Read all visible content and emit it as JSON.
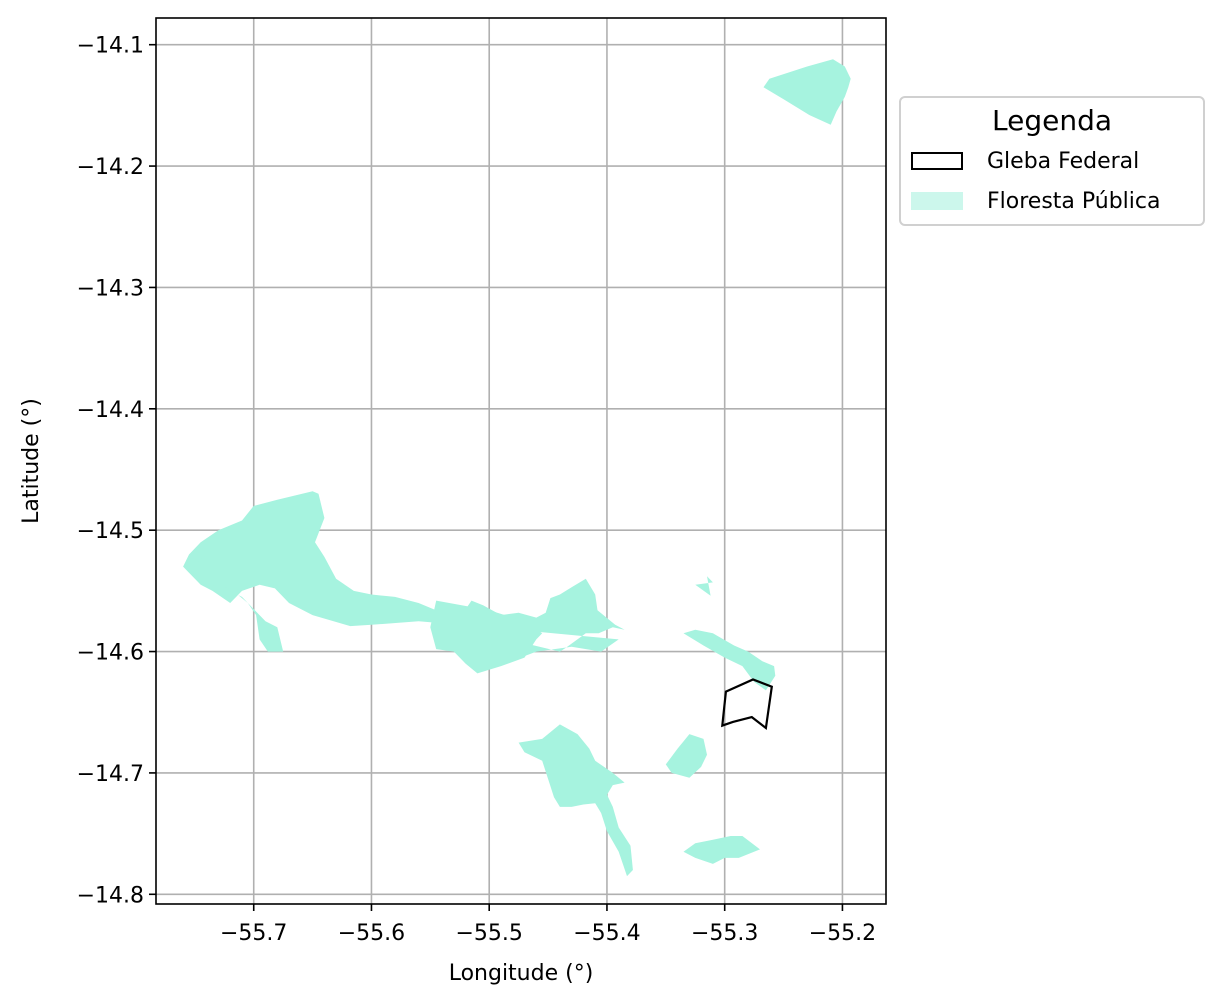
{
  "chart_data": {
    "type": "map",
    "xlabel": "Longitude (°)",
    "ylabel": "Latitude (°)",
    "xlim": [
      -55.783,
      -55.163
    ],
    "ylim": [
      -14.808,
      -14.078
    ],
    "grid": true,
    "x_ticks": [
      {
        "value": -55.7,
        "label": "−55.7"
      },
      {
        "value": -55.6,
        "label": "−55.6"
      },
      {
        "value": -55.5,
        "label": "−55.5"
      },
      {
        "value": -55.4,
        "label": "−55.4"
      },
      {
        "value": -55.3,
        "label": "−55.3"
      },
      {
        "value": -55.2,
        "label": "−55.2"
      }
    ],
    "y_ticks": [
      {
        "value": -14.1,
        "label": "−14.1"
      },
      {
        "value": -14.2,
        "label": "−14.2"
      },
      {
        "value": -14.3,
        "label": "−14.3"
      },
      {
        "value": -14.4,
        "label": "−14.4"
      },
      {
        "value": -14.5,
        "label": "−14.5"
      },
      {
        "value": -14.6,
        "label": "−14.6"
      },
      {
        "value": -14.7,
        "label": "−14.7"
      },
      {
        "value": -14.8,
        "label": "−14.8"
      }
    ],
    "legend": {
      "title": "Legenda",
      "placement": "outside-top-right",
      "items": [
        {
          "label": "Gleba Federal",
          "style": "outline"
        },
        {
          "label": "Floresta Pública",
          "style": "fill"
        }
      ]
    },
    "colors": {
      "forest": "#a6f3df",
      "forest_legend": "#ccf7ec",
      "gleba_outline": "#000000",
      "grid": "#b0b0b0"
    },
    "layers": [
      {
        "name": "Floresta Pública",
        "type": "filled",
        "polygons": [
          [
            [
              -55.208,
              -14.112
            ],
            [
              -55.198,
              -14.118
            ],
            [
              -55.193,
              -14.128
            ],
            [
              -55.195,
              -14.135
            ],
            [
              -55.198,
              -14.143
            ],
            [
              -55.205,
              -14.155
            ],
            [
              -55.21,
              -14.166
            ],
            [
              -55.228,
              -14.158
            ],
            [
              -55.25,
              -14.145
            ],
            [
              -55.267,
              -14.135
            ],
            [
              -55.262,
              -14.128
            ],
            [
              -55.23,
              -14.118
            ]
          ],
          [
            [
              -55.7,
              -14.48
            ],
            [
              -55.68,
              -14.475
            ],
            [
              -55.65,
              -14.468
            ],
            [
              -55.645,
              -14.47
            ],
            [
              -55.64,
              -14.49
            ],
            [
              -55.648,
              -14.51
            ],
            [
              -55.64,
              -14.522
            ],
            [
              -55.63,
              -14.54
            ],
            [
              -55.615,
              -14.55
            ],
            [
              -55.6,
              -14.553
            ],
            [
              -55.58,
              -14.555
            ],
            [
              -55.56,
              -14.56
            ],
            [
              -55.54,
              -14.568
            ],
            [
              -55.525,
              -14.572
            ],
            [
              -55.515,
              -14.558
            ],
            [
              -55.505,
              -14.562
            ],
            [
              -55.49,
              -14.57
            ],
            [
              -55.475,
              -14.568
            ],
            [
              -55.46,
              -14.572
            ],
            [
              -55.452,
              -14.568
            ],
            [
              -55.448,
              -14.556
            ],
            [
              -55.44,
              -14.553
            ],
            [
              -55.43,
              -14.547
            ],
            [
              -55.418,
              -14.54
            ],
            [
              -55.41,
              -14.553
            ],
            [
              -55.408,
              -14.566
            ],
            [
              -55.393,
              -14.578
            ],
            [
              -55.385,
              -14.582
            ],
            [
              -55.395,
              -14.58
            ],
            [
              -55.407,
              -14.585
            ],
            [
              -55.418,
              -14.585
            ],
            [
              -55.435,
              -14.597
            ],
            [
              -55.44,
              -14.6
            ],
            [
              -55.475,
              -14.592
            ],
            [
              -55.48,
              -14.592
            ],
            [
              -55.487,
              -14.61
            ],
            [
              -55.46,
              -14.6
            ],
            [
              -55.43,
              -14.596
            ],
            [
              -55.405,
              -14.6
            ],
            [
              -55.39,
              -14.59
            ],
            [
              -55.5,
              -14.58
            ],
            [
              -55.56,
              -14.575
            ],
            [
              -55.6,
              -14.578
            ],
            [
              -55.618,
              -14.579
            ],
            [
              -55.65,
              -14.57
            ],
            [
              -55.67,
              -14.56
            ],
            [
              -55.682,
              -14.548
            ],
            [
              -55.695,
              -14.545
            ],
            [
              -55.71,
              -14.55
            ],
            [
              -55.72,
              -14.56
            ],
            [
              -55.735,
              -14.55
            ],
            [
              -55.745,
              -14.545
            ],
            [
              -55.755,
              -14.535
            ],
            [
              -55.76,
              -14.53
            ],
            [
              -55.755,
              -14.52
            ],
            [
              -55.745,
              -14.51
            ],
            [
              -55.73,
              -14.5
            ],
            [
              -55.71,
              -14.492
            ]
          ],
          [
            [
              -55.75,
              -14.528
            ],
            [
              -55.74,
              -14.52
            ],
            [
              -55.735,
              -14.53
            ],
            [
              -55.725,
              -14.53
            ],
            [
              -55.7,
              -14.528
            ],
            [
              -55.68,
              -14.527
            ],
            [
              -55.66,
              -14.528
            ],
            [
              -55.68,
              -14.535
            ],
            [
              -55.7,
              -14.535
            ],
            [
              -55.72,
              -14.535
            ],
            [
              -55.735,
              -14.54
            ],
            [
              -55.725,
              -14.548
            ],
            [
              -55.71,
              -14.555
            ],
            [
              -55.7,
              -14.565
            ],
            [
              -55.69,
              -14.575
            ],
            [
              -55.68,
              -14.58
            ],
            [
              -55.675,
              -14.6
            ],
            [
              -55.688,
              -14.6
            ],
            [
              -55.695,
              -14.59
            ],
            [
              -55.698,
              -14.57
            ],
            [
              -55.705,
              -14.56
            ],
            [
              -55.72,
              -14.548
            ],
            [
              -55.74,
              -14.545
            ],
            [
              -55.752,
              -14.538
            ]
          ],
          [
            [
              -55.545,
              -14.558
            ],
            [
              -55.5,
              -14.566
            ],
            [
              -55.47,
              -14.575
            ],
            [
              -55.455,
              -14.585
            ],
            [
              -55.46,
              -14.59
            ],
            [
              -55.47,
              -14.605
            ],
            [
              -55.49,
              -14.612
            ],
            [
              -55.51,
              -14.618
            ],
            [
              -55.52,
              -14.61
            ],
            [
              -55.53,
              -14.6
            ],
            [
              -55.545,
              -14.598
            ],
            [
              -55.55,
              -14.58
            ]
          ],
          [
            [
              -55.315,
              -14.538
            ],
            [
              -55.31,
              -14.543
            ],
            [
              -55.325,
              -14.545
            ],
            [
              -55.312,
              -14.554
            ]
          ],
          [
            [
              -55.335,
              -14.585
            ],
            [
              -55.318,
              -14.595
            ],
            [
              -55.3,
              -14.605
            ],
            [
              -55.285,
              -14.612
            ],
            [
              -55.275,
              -14.625
            ],
            [
              -55.265,
              -14.632
            ],
            [
              -55.257,
              -14.62
            ],
            [
              -55.258,
              -14.612
            ],
            [
              -55.268,
              -14.608
            ],
            [
              -55.28,
              -14.6
            ],
            [
              -55.292,
              -14.595
            ],
            [
              -55.31,
              -14.585
            ],
            [
              -55.325,
              -14.582
            ]
          ],
          [
            [
              -55.455,
              -14.672
            ],
            [
              -55.44,
              -14.66
            ],
            [
              -55.425,
              -14.668
            ],
            [
              -55.415,
              -14.68
            ],
            [
              -55.41,
              -14.69
            ],
            [
              -55.395,
              -14.7
            ],
            [
              -55.385,
              -14.708
            ],
            [
              -55.395,
              -14.71
            ],
            [
              -55.4,
              -14.718
            ],
            [
              -55.395,
              -14.728
            ],
            [
              -55.39,
              -14.745
            ],
            [
              -55.38,
              -14.76
            ],
            [
              -55.378,
              -14.78
            ],
            [
              -55.383,
              -14.785
            ],
            [
              -55.39,
              -14.765
            ],
            [
              -55.4,
              -14.748
            ],
            [
              -55.405,
              -14.733
            ],
            [
              -55.41,
              -14.725
            ],
            [
              -55.42,
              -14.726
            ],
            [
              -55.43,
              -14.728
            ],
            [
              -55.44,
              -14.728
            ],
            [
              -55.445,
              -14.72
            ],
            [
              -55.45,
              -14.705
            ],
            [
              -55.455,
              -14.69
            ],
            [
              -55.47,
              -14.683
            ],
            [
              -55.475,
              -14.675
            ]
          ],
          [
            [
              -55.33,
              -14.668
            ],
            [
              -55.318,
              -14.672
            ],
            [
              -55.315,
              -14.685
            ],
            [
              -55.32,
              -14.695
            ],
            [
              -55.33,
              -14.704
            ],
            [
              -55.345,
              -14.7
            ],
            [
              -55.35,
              -14.693
            ],
            [
              -55.34,
              -14.68
            ]
          ],
          [
            [
              -55.295,
              -14.752
            ],
            [
              -55.285,
              -14.752
            ],
            [
              -55.27,
              -14.763
            ],
            [
              -55.288,
              -14.77
            ],
            [
              -55.3,
              -14.77
            ],
            [
              -55.31,
              -14.775
            ],
            [
              -55.325,
              -14.77
            ],
            [
              -55.335,
              -14.765
            ],
            [
              -55.325,
              -14.758
            ],
            [
              -55.31,
              -14.755
            ]
          ]
        ]
      },
      {
        "name": "Gleba Federal",
        "type": "outline",
        "polygons": [
          [
            [
              -55.299,
              -14.633
            ],
            [
              -55.276,
              -14.623
            ],
            [
              -55.26,
              -14.629
            ],
            [
              -55.265,
              -14.663
            ],
            [
              -55.277,
              -14.654
            ],
            [
              -55.293,
              -14.658
            ],
            [
              -55.302,
              -14.661
            ]
          ]
        ]
      }
    ]
  }
}
